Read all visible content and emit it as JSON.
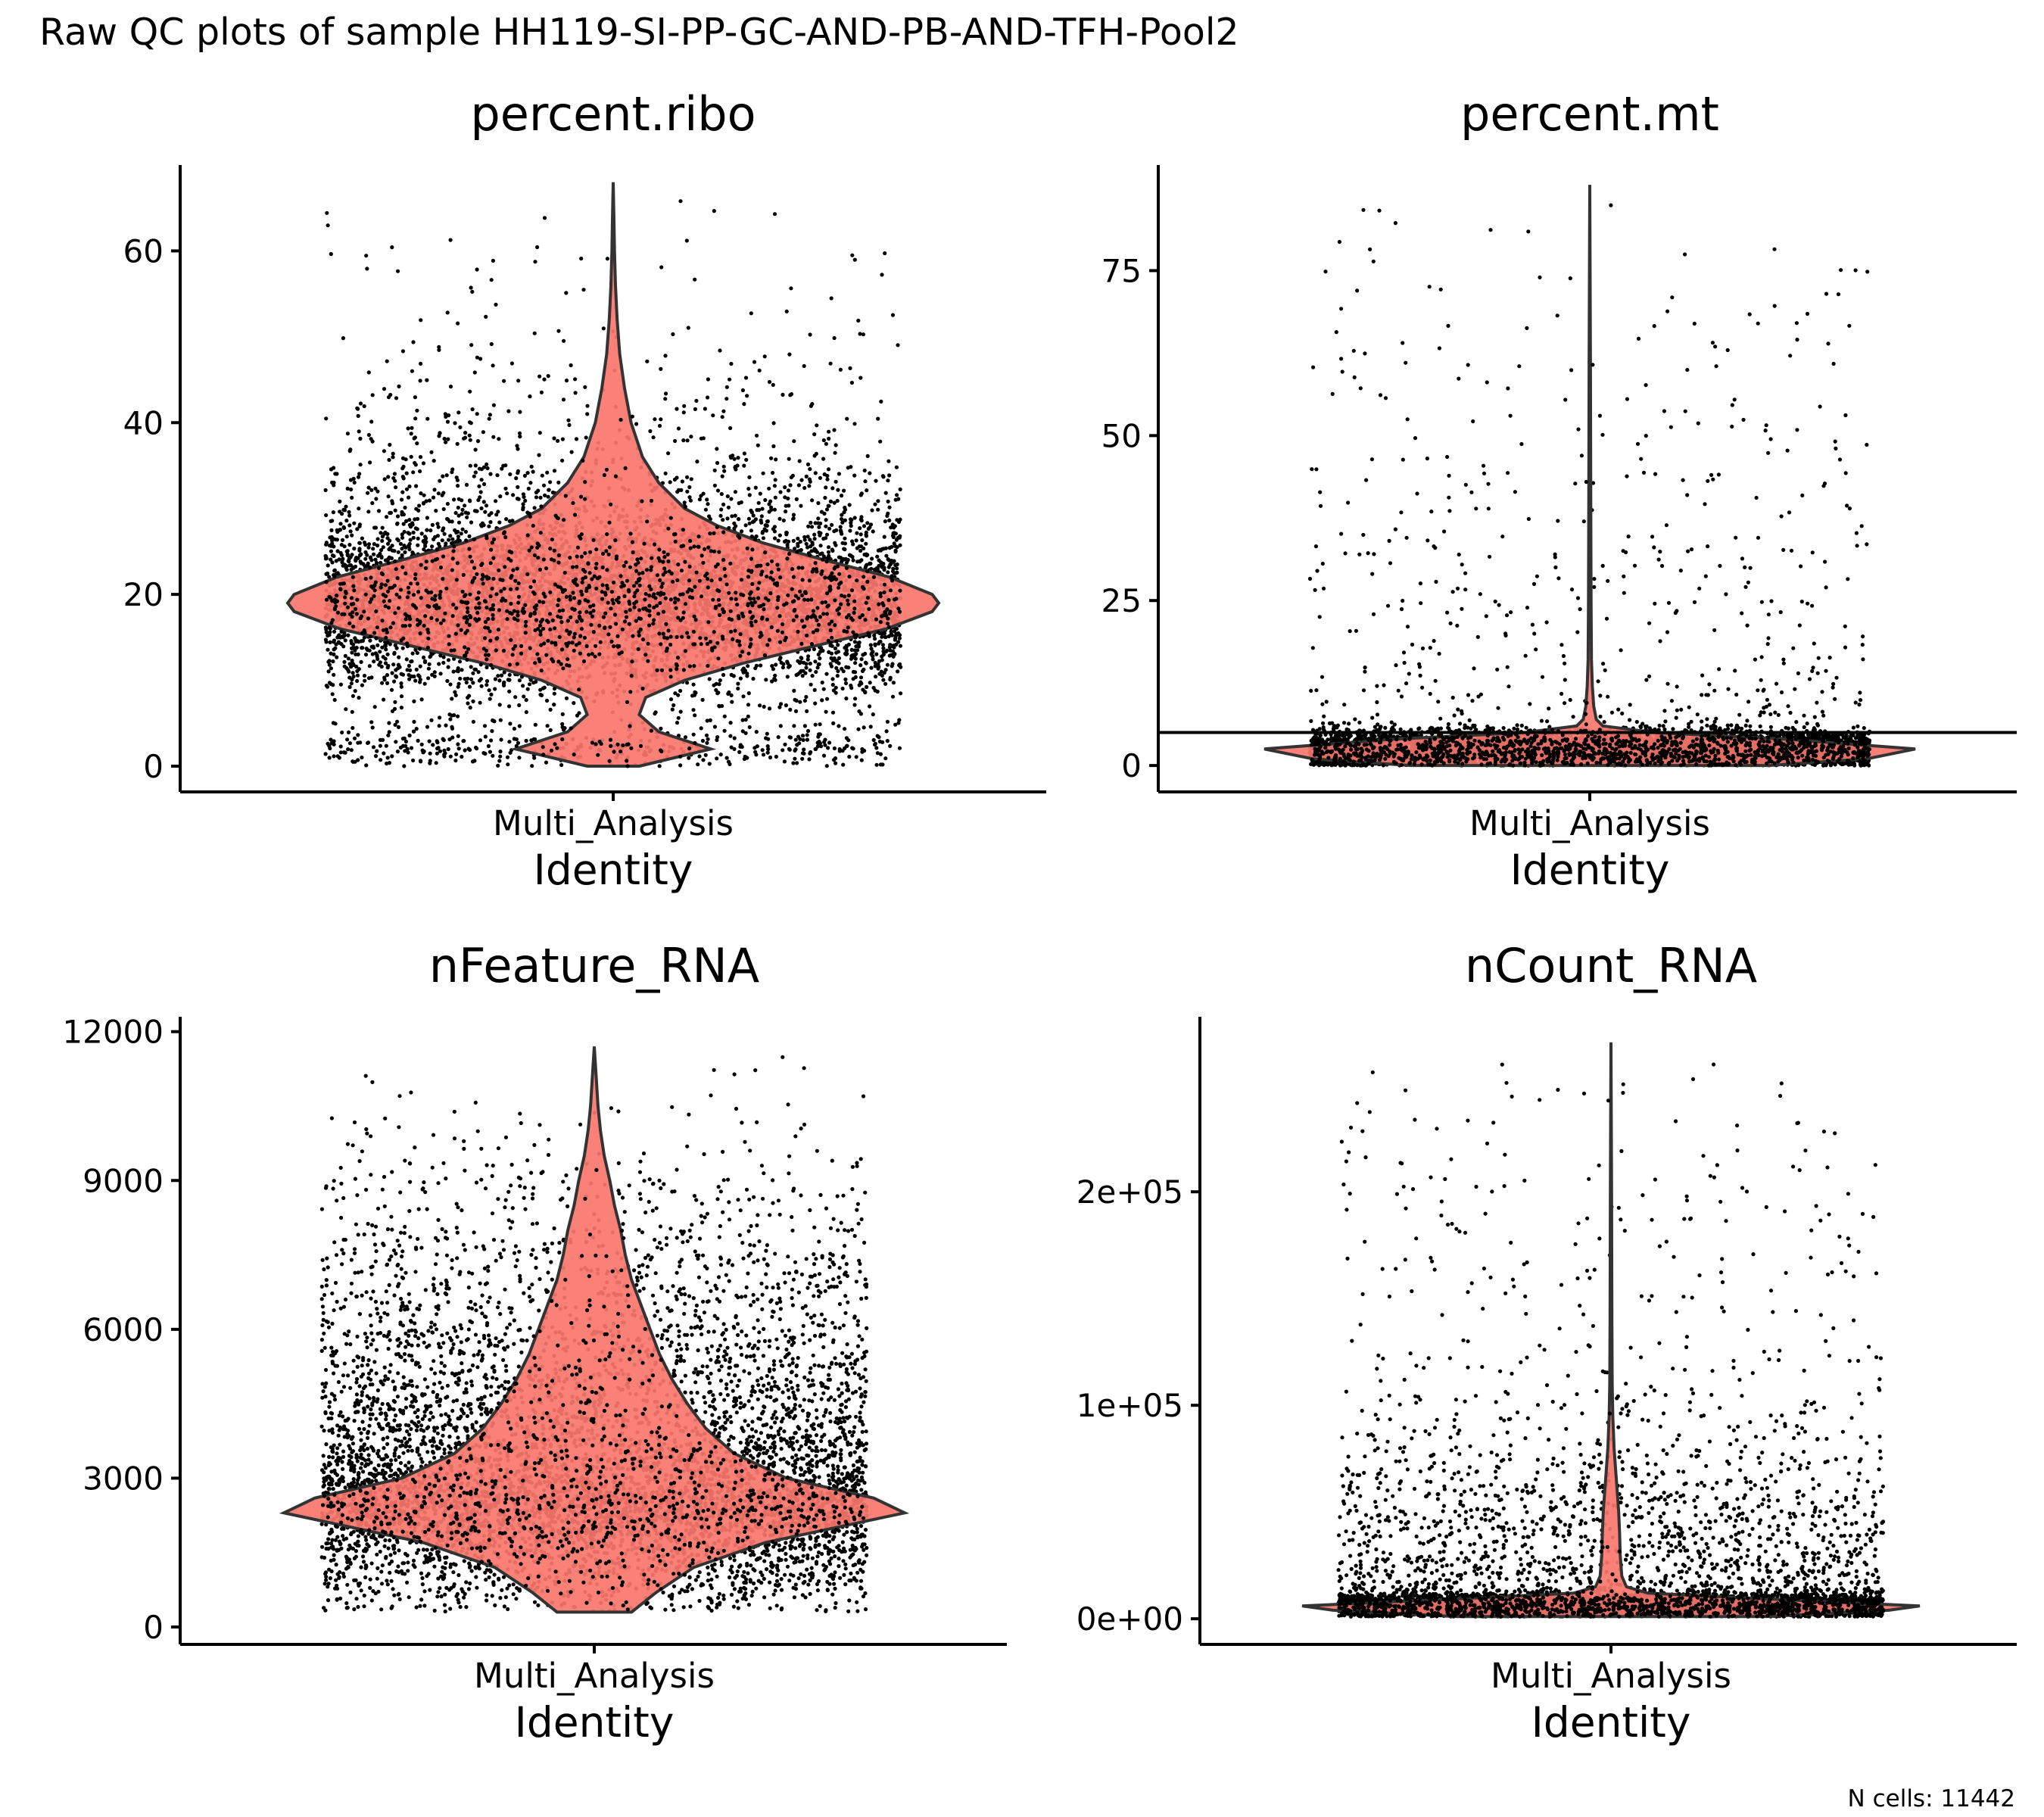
{
  "title": "Raw QC plots of sample HH119-SI-PP-GC-AND-PB-AND-TFH-Pool2",
  "caption": "N cells: 11442",
  "colors": {
    "violin_fill": "#F8766D",
    "violin_stroke": "#333333",
    "points": "#000000",
    "threshold_line": "#000000"
  },
  "chart_data": [
    {
      "type": "violin",
      "title": "percent.ribo",
      "xlabel": "Identity",
      "ylabel": "",
      "categories": [
        "Multi_Analysis"
      ],
      "ylim": [
        -3,
        70
      ],
      "yticks": [
        0,
        20,
        40,
        60
      ],
      "ytick_labels": [
        "0",
        "20",
        "40",
        "60"
      ],
      "distribution": {
        "min": 0,
        "max": 68,
        "median": 19,
        "mode": 19,
        "violin_profile": [
          [
            0,
            0.08
          ],
          [
            2,
            0.3
          ],
          [
            4,
            0.14
          ],
          [
            6,
            0.08
          ],
          [
            8,
            0.1
          ],
          [
            10,
            0.22
          ],
          [
            12,
            0.4
          ],
          [
            14,
            0.62
          ],
          [
            16,
            0.84
          ],
          [
            18,
            0.98
          ],
          [
            19,
            1.0
          ],
          [
            20,
            0.98
          ],
          [
            22,
            0.85
          ],
          [
            24,
            0.65
          ],
          [
            26,
            0.46
          ],
          [
            28,
            0.32
          ],
          [
            30,
            0.22
          ],
          [
            33,
            0.14
          ],
          [
            36,
            0.09
          ],
          [
            40,
            0.055
          ],
          [
            44,
            0.035
          ],
          [
            48,
            0.02
          ],
          [
            52,
            0.012
          ],
          [
            56,
            0.007
          ],
          [
            60,
            0.004
          ],
          [
            64,
            0.002
          ],
          [
            68,
            0
          ]
        ]
      },
      "threshold": null,
      "n_points_shown": 11442
    },
    {
      "type": "violin",
      "title": "percent.mt",
      "xlabel": "Identity",
      "ylabel": "",
      "categories": [
        "Multi_Analysis"
      ],
      "ylim": [
        -4,
        91
      ],
      "yticks": [
        0,
        25,
        50,
        75
      ],
      "ytick_labels": [
        "0",
        "25",
        "50",
        "75"
      ],
      "distribution": {
        "min": 0,
        "max": 88,
        "median": 2.5,
        "mode": 2.5,
        "violin_profile": [
          [
            0,
            0.55
          ],
          [
            1,
            0.85
          ],
          [
            2.5,
            1.0
          ],
          [
            4,
            0.6
          ],
          [
            5,
            0.2
          ],
          [
            6,
            0.04
          ],
          [
            7,
            0.02
          ],
          [
            9,
            0.012
          ],
          [
            12,
            0.008
          ],
          [
            16,
            0.005
          ],
          [
            25,
            0.004
          ],
          [
            40,
            0.003
          ],
          [
            60,
            0.002
          ],
          [
            88,
            0
          ]
        ]
      },
      "threshold": 5,
      "n_points_shown": 11442
    },
    {
      "type": "violin",
      "title": "nFeature_RNA",
      "xlabel": "Identity",
      "ylabel": "",
      "categories": [
        "Multi_Analysis"
      ],
      "ylim": [
        -350,
        12300
      ],
      "yticks": [
        0,
        3000,
        6000,
        9000,
        12000
      ],
      "ytick_labels": [
        "0",
        "3000",
        "6000",
        "9000",
        "12000"
      ],
      "distribution": {
        "min": 300,
        "max": 11700,
        "median": 2300,
        "mode": 2300,
        "violin_profile": [
          [
            300,
            0.12
          ],
          [
            700,
            0.2
          ],
          [
            1200,
            0.32
          ],
          [
            1700,
            0.55
          ],
          [
            2100,
            0.85
          ],
          [
            2300,
            1.0
          ],
          [
            2600,
            0.9
          ],
          [
            3000,
            0.62
          ],
          [
            3500,
            0.45
          ],
          [
            4000,
            0.36
          ],
          [
            4500,
            0.3
          ],
          [
            5000,
            0.25
          ],
          [
            5500,
            0.21
          ],
          [
            6000,
            0.18
          ],
          [
            6500,
            0.15
          ],
          [
            7000,
            0.12
          ],
          [
            7500,
            0.1
          ],
          [
            8000,
            0.085
          ],
          [
            8500,
            0.065
          ],
          [
            9000,
            0.05
          ],
          [
            9500,
            0.032
          ],
          [
            10000,
            0.02
          ],
          [
            10500,
            0.012
          ],
          [
            11000,
            0.007
          ],
          [
            11700,
            0
          ]
        ]
      },
      "threshold": null,
      "n_points_shown": 11442
    },
    {
      "type": "violin",
      "title": "nCount_RNA",
      "xlabel": "Identity",
      "ylabel": "",
      "categories": [
        "Multi_Analysis"
      ],
      "ylim": [
        -12000,
        282000
      ],
      "yticks": [
        0,
        100000,
        200000
      ],
      "ytick_labels": [
        "0e+00",
        "1e+05",
        "2e+05"
      ],
      "distribution": {
        "min": 1000,
        "max": 270000,
        "median": 6000,
        "mode": 6000,
        "violin_profile": [
          [
            1000,
            0.5
          ],
          [
            4000,
            0.9
          ],
          [
            6000,
            1.0
          ],
          [
            9000,
            0.55
          ],
          [
            12000,
            0.12
          ],
          [
            15000,
            0.05
          ],
          [
            20000,
            0.035
          ],
          [
            30000,
            0.03
          ],
          [
            40000,
            0.028
          ],
          [
            50000,
            0.025
          ],
          [
            60000,
            0.02
          ],
          [
            70000,
            0.015
          ],
          [
            80000,
            0.01
          ],
          [
            95000,
            0.006
          ],
          [
            110000,
            0.004
          ],
          [
            140000,
            0.003
          ],
          [
            200000,
            0.002
          ],
          [
            270000,
            0
          ]
        ]
      },
      "threshold": null,
      "n_points_shown": 11442
    }
  ]
}
